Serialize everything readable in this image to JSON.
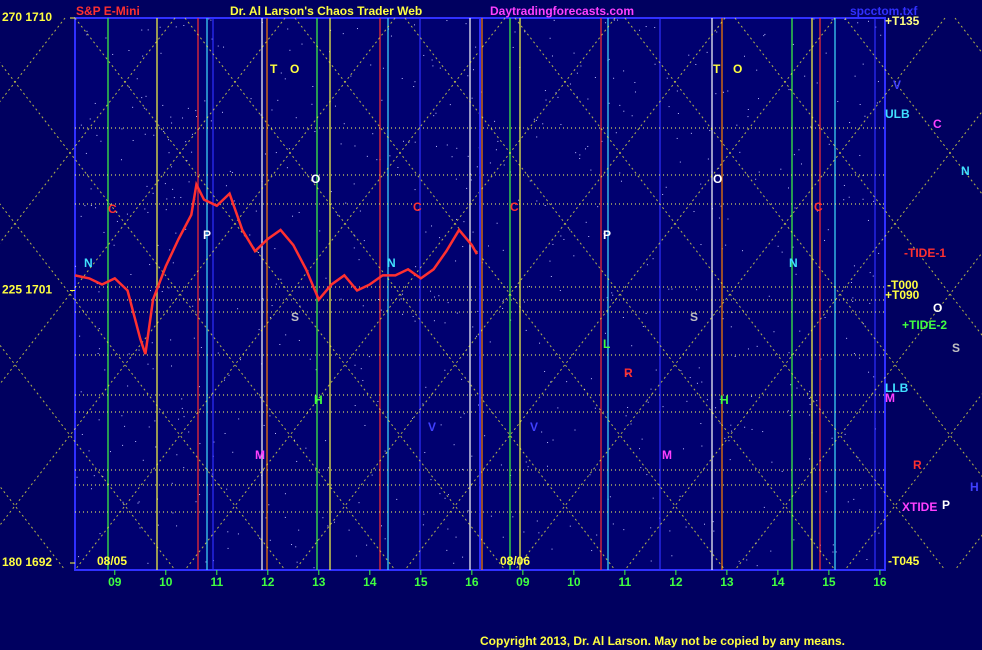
{
  "chart_data": {
    "type": "line",
    "title": "Dr. Al Larson's Chaos Trader Web",
    "symbol": "S&P E-Mini",
    "site": "Daytradingforecasts.com",
    "file": "spcctom.txf",
    "copyright": "Copyright 2013, Dr. Al Larson. May not be copied by any means.",
    "dates": [
      "08/05",
      "08/06"
    ],
    "ylim": [
      1692,
      1710
    ],
    "yticks": [
      {
        "value": 1710,
        "label": "270  1710"
      },
      {
        "value": 1701,
        "label": "225  1701"
      },
      {
        "value": 1692,
        "label": "180  1692"
      }
    ],
    "xlim": [
      8.22,
      24.1
    ],
    "xticks": [
      {
        "value": 9,
        "label": "09"
      },
      10,
      11,
      12,
      13,
      14,
      15,
      16,
      {
        "value": 17,
        "label": "09"
      },
      {
        "value": 18,
        "label": "10"
      },
      {
        "value": 19,
        "label": "11"
      },
      {
        "value": 20,
        "label": "12"
      },
      {
        "value": 21,
        "label": "13"
      },
      {
        "value": 22,
        "label": "14"
      },
      {
        "value": 23,
        "label": "15"
      },
      {
        "value": 24,
        "label": "16"
      }
    ],
    "series": [
      {
        "color": "#ff3030",
        "x": [
          8.22,
          8.5,
          8.75,
          9,
          9.25,
          9.5,
          9.6,
          9.75,
          10,
          10.25,
          10.5,
          10.6,
          10.75,
          11,
          11.25,
          11.5,
          11.75,
          12,
          12.25,
          12.5,
          12.75,
          13,
          13.25,
          13.5,
          13.75,
          14,
          14.25,
          14.5,
          14.75,
          15,
          15.25,
          15.5,
          15.75,
          16,
          16.1
        ],
        "values": [
          1701.5,
          1701.4,
          1701.2,
          1701.4,
          1701.0,
          1699.4,
          1698.9,
          1700.7,
          1701.8,
          1702.7,
          1703.5,
          1704.5,
          1704.0,
          1703.8,
          1704.2,
          1703.0,
          1702.3,
          1702.7,
          1703.0,
          1702.5,
          1701.7,
          1700.7,
          1701.2,
          1701.5,
          1701.0,
          1701.2,
          1701.5,
          1701.5,
          1701.7,
          1701.4,
          1701.7,
          1702.3,
          1703.0,
          1702.5,
          1702.2
        ]
      }
    ],
    "annotations": [
      {
        "text": "+T135",
        "color": "#ffff80"
      },
      {
        "text": "V",
        "color": "#4040ff"
      },
      {
        "text": "ULB",
        "color": "#40e0ff"
      },
      {
        "text": "C",
        "color": "#ff40ff"
      },
      {
        "text": "N",
        "color": "#40e0ff"
      },
      {
        "text": "-TIDE-1",
        "color": "#ff3030"
      },
      {
        "text": "-T000",
        "color": "#ffff40"
      },
      {
        "text": "+T090",
        "color": "#ffff40"
      },
      {
        "text": "O",
        "color": "#ffffff"
      },
      {
        "text": "+TIDE-2",
        "color": "#40ff40"
      },
      {
        "text": "S",
        "color": "#c0c0c0"
      },
      {
        "text": "LLB",
        "color": "#40e0ff"
      },
      {
        "text": "M",
        "color": "#ff40ff"
      },
      {
        "text": "R",
        "color": "#ff3030"
      },
      {
        "text": "H",
        "color": "#4040ff"
      },
      {
        "text": "XTIDE",
        "color": "#ff40ff"
      },
      {
        "text": "P",
        "color": "#ffffff"
      },
      {
        "text": "-T045",
        "color": "#ffff40"
      },
      {
        "text": "T",
        "color": "#ffff40"
      },
      {
        "text": "O",
        "color": "#ffff40"
      },
      {
        "text": "C",
        "color": "#ff3030"
      },
      {
        "text": "N",
        "color": "#40e0ff"
      },
      {
        "text": "P",
        "color": "#ffffff"
      },
      {
        "text": "O",
        "color": "#ffffff"
      },
      {
        "text": "S",
        "color": "#c0c0c0"
      },
      {
        "text": "H",
        "color": "#40ff40"
      },
      {
        "text": "M",
        "color": "#ff40ff"
      },
      {
        "text": "V",
        "color": "#4040ff"
      },
      {
        "text": "C",
        "color": "#ff3030"
      },
      {
        "text": "N",
        "color": "#40e0ff"
      },
      {
        "text": "C",
        "color": "#ff3030"
      },
      {
        "text": "V",
        "color": "#4040ff"
      },
      {
        "text": "P",
        "color": "#ffffff"
      },
      {
        "text": "L",
        "color": "#40ff40"
      },
      {
        "text": "R",
        "color": "#ff3030"
      },
      {
        "text": "M",
        "color": "#ff40ff"
      },
      {
        "text": "S",
        "color": "#c0c0c0"
      },
      {
        "text": "H",
        "color": "#40ff40"
      },
      {
        "text": "T",
        "color": "#ffff40"
      },
      {
        "text": "O",
        "color": "#ffff40"
      },
      {
        "text": "O",
        "color": "#ffffff"
      },
      {
        "text": "N",
        "color": "#40e0ff"
      },
      {
        "text": "C",
        "color": "#ff3030"
      }
    ]
  }
}
